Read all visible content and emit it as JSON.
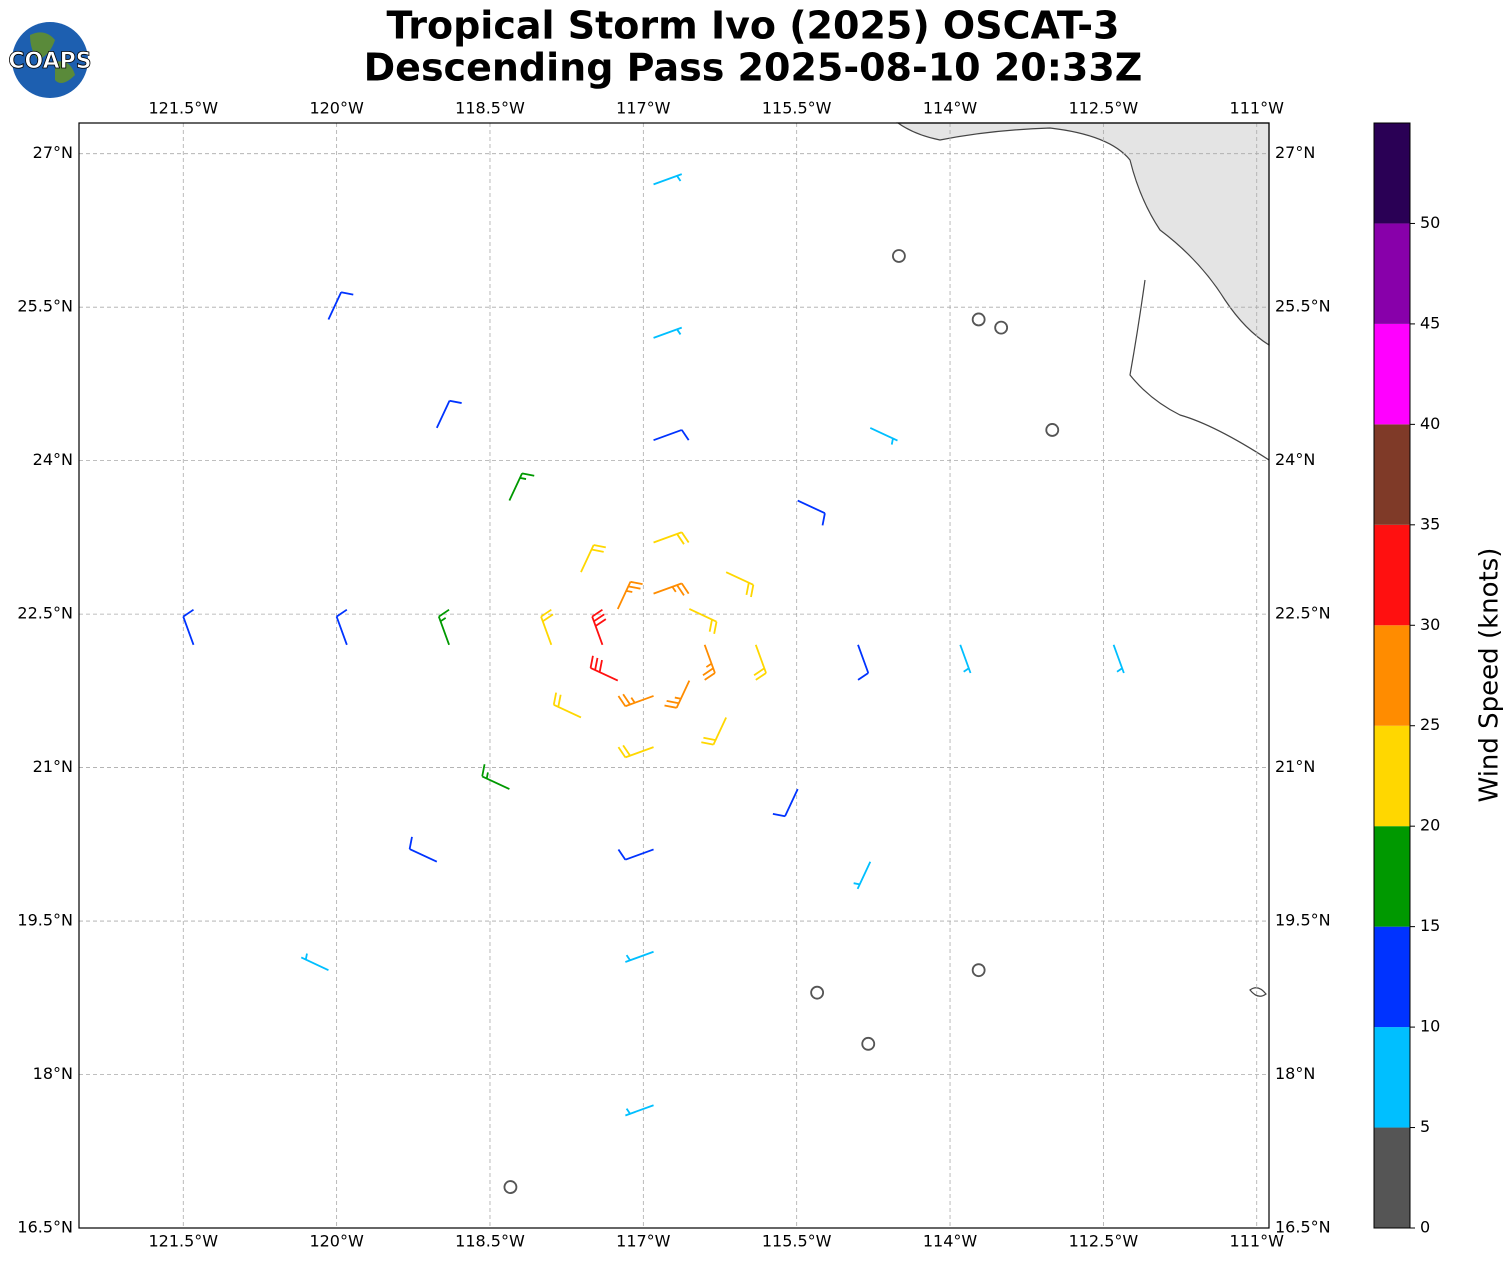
{
  "logo": "COAPS",
  "chart_data": {
    "type": "barbs",
    "title": [
      "Tropical Storm Ivo (2025) OSCAT-3",
      "Descending Pass 2025-08-10 20:33Z"
    ],
    "xlim": [
      -122.52,
      -110.88
    ],
    "ylim": [
      16.5,
      27.3
    ],
    "xticks": [
      {
        "value": -121.5,
        "label": "121.5°W"
      },
      {
        "value": -120,
        "label": "120°W"
      },
      {
        "value": -118.5,
        "label": "118.5°W"
      },
      {
        "value": -117,
        "label": "117°W"
      },
      {
        "value": -115.5,
        "label": "115.5°W"
      },
      {
        "value": -114,
        "label": "114°W"
      },
      {
        "value": -112.5,
        "label": "112.5°W"
      },
      {
        "value": -111,
        "label": "111°W"
      }
    ],
    "yticks": [
      {
        "value": 16.5,
        "label": "16.5°N"
      },
      {
        "value": 18,
        "label": "18°N"
      },
      {
        "value": 19.5,
        "label": "19.5°N"
      },
      {
        "value": 21,
        "label": "21°N"
      },
      {
        "value": 22.5,
        "label": "22.5°N"
      },
      {
        "value": 24,
        "label": "24°N"
      },
      {
        "value": 25.5,
        "label": "25.5°N"
      },
      {
        "value": 27,
        "label": "27°N"
      }
    ],
    "grid": true,
    "barbs": {
      "lon": [
        -116.9,
        -116.55,
        -116.4,
        -116.55,
        -116.9,
        -117.25,
        -117.4,
        -117.25,
        -116.9,
        -116.19,
        -115.9,
        -116.19,
        -116.9,
        -117.61,
        -117.9,
        -117.61,
        -116.9,
        -115.49,
        -114.9,
        -115.49,
        -116.9,
        -118.31,
        -118.9,
        -118.31,
        -116.9,
        -114.78,
        -113.9,
        -114.78,
        -116.9,
        -119.02,
        -119.9,
        -119.02,
        -116.9,
        -113.72,
        -112.4,
        -113.72,
        -116.9,
        -120.08,
        -121.4,
        -120.08,
        -114.5,
        -113.5,
        -113,
        -115.3,
        -114.8,
        -118.3
      ],
      "lat": [
        22.7,
        22.55,
        22.2,
        21.85,
        21.7,
        21.85,
        22.2,
        22.55,
        23.2,
        22.91,
        22.2,
        21.49,
        21.2,
        21.49,
        22.2,
        22.91,
        24.2,
        23.61,
        22.2,
        20.79,
        20.2,
        20.79,
        22.2,
        23.61,
        25.2,
        24.32,
        22.2,
        20.08,
        19.2,
        20.08,
        22.2,
        24.32,
        26.7,
        25.38,
        22.2,
        19.02,
        17.7,
        19.02,
        22.2,
        25.38,
        26,
        25.3,
        24.3,
        18.8,
        18.3,
        16.9
      ],
      "speed": [
        26,
        24,
        27,
        28,
        28,
        32,
        31,
        26,
        22,
        22,
        23,
        22,
        21,
        23,
        24,
        21,
        13,
        12,
        14,
        13,
        14,
        15,
        17,
        18,
        9,
        8,
        9,
        7,
        8,
        12,
        13,
        14,
        9,
        4,
        8,
        3,
        7,
        9,
        12,
        13,
        2,
        3,
        4,
        2,
        3,
        4
      ],
      "direction": [
        70,
        115,
        160,
        205,
        250,
        295,
        340,
        25,
        70,
        115,
        160,
        205,
        250,
        295,
        340,
        25,
        70,
        115,
        160,
        205,
        250,
        295,
        340,
        25,
        70,
        115,
        160,
        205,
        250,
        295,
        340,
        25,
        70,
        115,
        160,
        205,
        250,
        295,
        340,
        25,
        300,
        320,
        340,
        200,
        180,
        90
      ]
    },
    "colorbar": {
      "label": "Wind Speed (knots)",
      "bounds": [
        0,
        5,
        10,
        15,
        20,
        25,
        30,
        35,
        40,
        45,
        50,
        55
      ],
      "colors": [
        "#555555",
        "#00bfff",
        "#0033ff",
        "#009900",
        "#ffd700",
        "#ff8c00",
        "#ff1010",
        "#7f3a28",
        "#ff00ff",
        "#8800aa",
        "#2a0055"
      ],
      "ticks": [
        0,
        5,
        10,
        15,
        20,
        25,
        30,
        35,
        40,
        45,
        50
      ]
    }
  }
}
